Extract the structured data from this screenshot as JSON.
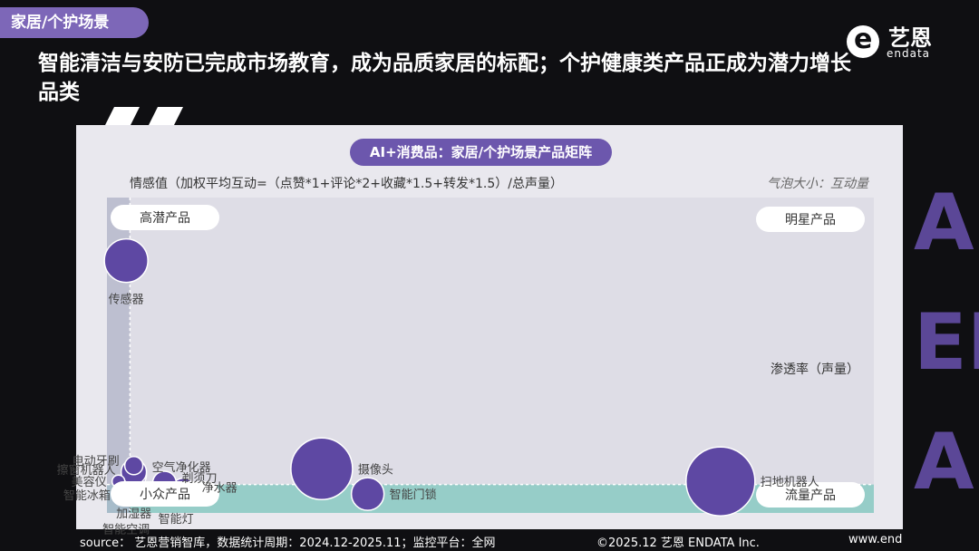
{
  "header": {
    "section_tag": "家居/个护场景",
    "headline": "智能清洁与安防已完成市场教育，成为品质家居的标配；个护健康类产品正成为潜力增长品类"
  },
  "logo": {
    "cn": "艺恩",
    "en": "endata"
  },
  "decor_text": "AL\nEN\nAI)",
  "chart_data": {
    "type": "scatter",
    "title": "AI+消费品：家居/个护场景产品矩阵",
    "ylabel": "情感值（加权平均互动=（点赞*1+评论*2+收藏*1.5+转发*1.5）/总声量）",
    "xlabel": "渗透率（声量）",
    "bubble_size_label": "气泡大小：互动量",
    "quadrants": {
      "top_left": "高潜产品",
      "top_right": "明星产品",
      "bottom_left": "小众产品",
      "bottom_right": "流量产品"
    },
    "x_range": [
      0,
      100
    ],
    "y_range": [
      0,
      100
    ],
    "x_divider": 3,
    "y_divider": 9,
    "points": [
      {
        "name": "传感器",
        "x": 2.5,
        "y": 80,
        "size": 24
      },
      {
        "name": "电动牙刷",
        "x": 3.5,
        "y": 15,
        "size": 10
      },
      {
        "name": "擦窗机器人",
        "x": 3.5,
        "y": 12,
        "size": 14
      },
      {
        "name": "空气净化器",
        "x": 3.5,
        "y": 13,
        "size": 14
      },
      {
        "name": "美容仪",
        "x": 1.5,
        "y": 10,
        "size": 7
      },
      {
        "name": "智能冰箱",
        "x": 2,
        "y": 7.5,
        "size": 7
      },
      {
        "name": "智能空调",
        "x": 2.5,
        "y": 6.5,
        "size": 6
      },
      {
        "name": "加湿器",
        "x": 3.5,
        "y": 7.5,
        "size": 8
      },
      {
        "name": "剃须刀",
        "x": 7.5,
        "y": 9.5,
        "size": 13
      },
      {
        "name": "净水器",
        "x": 10,
        "y": 7,
        "size": 14
      },
      {
        "name": "智能灯",
        "x": 9,
        "y": 5.5,
        "size": 9
      },
      {
        "name": "摄像头",
        "x": 28,
        "y": 14,
        "size": 34
      },
      {
        "name": "智能门锁",
        "x": 34,
        "y": 6,
        "size": 18
      },
      {
        "name": "扫地机器人",
        "x": 80,
        "y": 10,
        "size": 38
      }
    ]
  },
  "footer": {
    "source": "source： 艺恩营销智库，数据统计周期：2024.12-2025.11；监控平台：全网",
    "copyright": "©2025.12  艺恩 ENDATA Inc.",
    "url": "www.endata.com.cn"
  }
}
